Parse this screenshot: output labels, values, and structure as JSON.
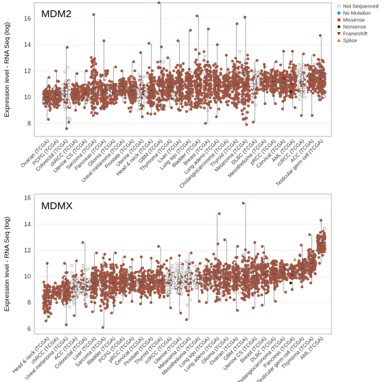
{
  "legend": [
    {
      "label": "Not Sequenced",
      "marker": "open-circle",
      "color": "#9a9a9a"
    },
    {
      "label": "No Mutation",
      "marker": "circle",
      "color": "#1f9bd0"
    },
    {
      "label": "Missense",
      "marker": "circle",
      "color": "#d14a21"
    },
    {
      "label": "Nonsense",
      "marker": "diamond",
      "color": "#3b1308"
    },
    {
      "label": "Frameshift",
      "marker": "triangle-down",
      "color": "#a01a10"
    },
    {
      "label": "Splice",
      "marker": "triangle-up",
      "color": "#e57a12"
    }
  ],
  "chart_data": [
    {
      "type": "scatter",
      "title": "MDM2",
      "ylabel": "Expression level - RNA Seq (log)",
      "ylim": [
        7,
        17.2
      ],
      "yticks": [
        8,
        10,
        12,
        14,
        16
      ],
      "grid": true,
      "legend_position": "top-right",
      "categories": [
        "Ovarian (TCGA)",
        "PCPG (TCGA)",
        "Colorectal (TCGA)",
        "chRCC (TCGA)",
        "Uterine CS (TCGA)",
        "Sarcoma (TCGA)",
        "Pancreas (TCGA)",
        "Glioma (TCGA)",
        "Uveal melanoma (TCGA)",
        "Prostate (TCGA)",
        "Uterine (TCGA)",
        "Head & neck (TCGA)",
        "GBM (TCGA)",
        "Thymoma (TCGA)",
        "Liver (TCGA)",
        "Lung squ (TCGA)",
        "Bladder (TCGA)",
        "Breast (TCGA)",
        "Lung adeno (TCGA)",
        "Cholangiocarcinoma (TCGA)",
        "Thyroid (TCGA)",
        "Melanoma (TCGA)",
        "DLBC (TCGA)",
        "Mesothelioma (TCGA)",
        "pRCC (TCGA)",
        "Cervical (TCGA)",
        "AML (TCGA)",
        "ccRCC (TCGA)",
        "ACC (TCGA)",
        "Testicular germ cell (TCGA)"
      ],
      "medians": [
        10.0,
        10.1,
        10.2,
        10.2,
        10.3,
        10.7,
        10.4,
        10.3,
        10.8,
        10.5,
        10.6,
        10.5,
        10.5,
        10.8,
        10.9,
        10.8,
        10.9,
        11.0,
        10.9,
        10.8,
        11.0,
        10.9,
        11.0,
        11.2,
        11.2,
        11.1,
        11.3,
        11.2,
        11.3,
        11.4
      ],
      "max": [
        11.5,
        12.0,
        13.8,
        11.8,
        12.0,
        16.3,
        14.3,
        12.3,
        12.0,
        12.7,
        13.4,
        14.1,
        17.2,
        13.0,
        14.3,
        15.1,
        16.2,
        15.2,
        14.0,
        13.2,
        15.6,
        16.1,
        12.8,
        12.5,
        12.7,
        13.5,
        13.5,
        13.3,
        13.2,
        14.7
      ],
      "min": [
        8.3,
        9.2,
        7.6,
        9.0,
        9.2,
        8.6,
        9.1,
        9.5,
        9.6,
        8.9,
        8.5,
        8.7,
        9.0,
        9.2,
        9.0,
        8.9,
        9.2,
        8.0,
        8.5,
        9.4,
        9.2,
        7.9,
        8.1,
        9.5,
        9.5,
        9.1,
        9.2,
        8.6,
        8.6,
        9.8
      ]
    },
    {
      "type": "scatter",
      "title": "MDMX",
      "ylabel": "Expression level - RNA Seq (log)",
      "ylim": [
        5.6,
        16.3
      ],
      "yticks": [
        6,
        8,
        10,
        12,
        14,
        16
      ],
      "grid": true,
      "categories": [
        "Head & neck (TCGA)",
        "chRCC (TCGA)",
        "Uveal melanoma (TCGA)",
        "ACC (TCGA)",
        "Colorectal (TCGA)",
        "Liver (TCGA)",
        "Sarcoma (TCGA)",
        "Bladder (TCGA)",
        "PCPG (TCGA)",
        "pRCC (TCGA)",
        "Cervical (TCGA)",
        "Prostate (TCGA)",
        "Thyroid (TCGA)",
        "ccRCC (TCGA)",
        "Uterine (TCGA)",
        "Melanoma (TCGA)",
        "Mesothelioma (TCGA)",
        "Lung squ (TCGA)",
        "Lung adeno (TCGA)",
        "Glioma (TCGA)",
        "Ovarian (TCGA)",
        "GBM (TCGA)",
        "Uterine CS (TCGA)",
        "Breast (TCGA)",
        "DLBC (TCGA)",
        "Cholangiocarcinoma (TCGA)",
        "Pancreas (TCGA)",
        "Testicular germ cell (TCGA)",
        "Thymoma (TCGA)",
        "AML (TCGA)"
      ],
      "medians": [
        8.3,
        8.8,
        8.9,
        9.2,
        9.4,
        9.5,
        9.4,
        9.5,
        9.6,
        9.6,
        9.6,
        9.5,
        9.7,
        9.7,
        9.8,
        9.8,
        9.8,
        9.9,
        9.9,
        9.8,
        10.0,
        10.0,
        10.1,
        10.2,
        10.2,
        10.3,
        10.4,
        10.6,
        11.0,
        12.6
      ],
      "max": [
        11.0,
        9.5,
        11.0,
        11.2,
        12.6,
        11.8,
        11.7,
        11.8,
        11.5,
        11.3,
        11.5,
        11.4,
        12.3,
        11.4,
        11.6,
        11.8,
        11.0,
        11.3,
        14.8,
        12.8,
        12.3,
        15.6,
        12.6,
        12.3,
        11.2,
        11.2,
        10.9,
        12.4,
        13.2,
        14.3
      ],
      "min": [
        6.6,
        8.0,
        6.3,
        7.0,
        7.7,
        7.3,
        6.1,
        7.2,
        8.0,
        8.1,
        7.9,
        8.0,
        8.4,
        7.6,
        7.2,
        6.7,
        8.1,
        8.0,
        8.1,
        8.2,
        7.4,
        8.2,
        7.6,
        7.8,
        8.1,
        8.8,
        9.0,
        9.2,
        9.5,
        11.0
      ]
    }
  ]
}
